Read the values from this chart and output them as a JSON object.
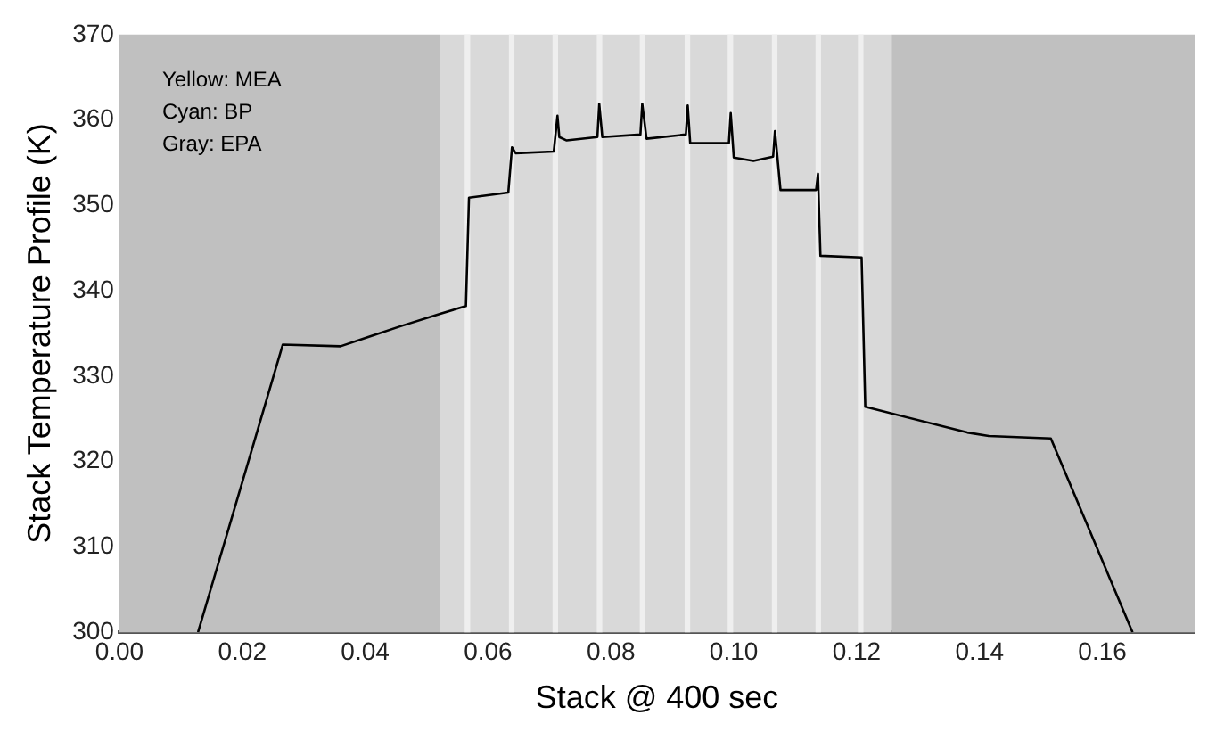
{
  "chart_data": {
    "type": "line",
    "xlabel": "Stack @ 400 sec",
    "ylabel": "Stack Temperature Profile (K)",
    "annotations": [
      "Yellow: MEA",
      "Cyan: BP",
      "Gray: EPA"
    ],
    "series": [
      {
        "color": "#000000",
        "x": [
          0.0128,
          0.0266,
          0.036,
          0.0406,
          0.046,
          0.0522,
          0.0564,
          0.0569,
          0.0633,
          0.0639,
          0.0645,
          0.0707,
          0.0713,
          0.0716,
          0.0728,
          0.0778,
          0.0781,
          0.0786,
          0.0848,
          0.0851,
          0.0858,
          0.0922,
          0.0925,
          0.0929,
          0.0992,
          0.0995,
          0.1,
          0.1032,
          0.1064,
          0.1067,
          0.1076,
          0.1134,
          0.1137,
          0.1141,
          0.1208,
          0.1214,
          0.138,
          0.1415,
          0.1516,
          0.1649
        ],
        "values": [
          300,
          333.7,
          333.5,
          334.6,
          335.9,
          337.3,
          338.2,
          350.9,
          351.5,
          356.8,
          356.1,
          356.3,
          360.5,
          358,
          357.6,
          358,
          361.9,
          358,
          358.3,
          361.9,
          357.8,
          358.3,
          361.7,
          357.3,
          357.3,
          360.8,
          355.6,
          355.2,
          355.7,
          358.7,
          351.8,
          351.8,
          353.7,
          344.1,
          343.9,
          326.4,
          323.4,
          323,
          322.7,
          300
        ]
      }
    ],
    "bands": [
      {
        "axis": "x",
        "from": 0,
        "to": 0.0522,
        "color": "#c0c0c0"
      },
      {
        "axis": "x",
        "from": 0.0522,
        "to": 0.1257,
        "color": "#d9d9d9"
      },
      {
        "axis": "x",
        "from": 0.1257,
        "to": 0.175,
        "color": "#c0c0c0"
      },
      {
        "axis": "x",
        "from": 0.0562,
        "to": 0.0571,
        "color": "#efefef"
      },
      {
        "axis": "x",
        "from": 0.0634,
        "to": 0.0643,
        "color": "#efefef"
      },
      {
        "axis": "x",
        "from": 0.0705,
        "to": 0.0714,
        "color": "#efefef"
      },
      {
        "axis": "x",
        "from": 0.0777,
        "to": 0.0786,
        "color": "#efefef"
      },
      {
        "axis": "x",
        "from": 0.0847,
        "to": 0.0856,
        "color": "#efefef"
      },
      {
        "axis": "x",
        "from": 0.092,
        "to": 0.0929,
        "color": "#efefef"
      },
      {
        "axis": "x",
        "from": 0.099,
        "to": 0.0999,
        "color": "#efefef"
      },
      {
        "axis": "x",
        "from": 0.1062,
        "to": 0.1071,
        "color": "#efefef"
      },
      {
        "axis": "x",
        "from": 0.1133,
        "to": 0.1142,
        "color": "#efefef"
      },
      {
        "axis": "x",
        "from": 0.1202,
        "to": 0.1211,
        "color": "#efefef"
      }
    ],
    "xlim": [
      0,
      0.175
    ],
    "xticks": [
      {
        "value": 0,
        "label": "0.00"
      },
      {
        "value": 0.02,
        "label": "0.02"
      },
      {
        "value": 0.04,
        "label": "0.04"
      },
      {
        "value": 0.06,
        "label": "0.06"
      },
      {
        "value": 0.08,
        "label": "0.08"
      },
      {
        "value": 0.1,
        "label": "0.10"
      },
      {
        "value": 0.12,
        "label": "0.12"
      },
      {
        "value": 0.14,
        "label": "0.14"
      },
      {
        "value": 0.16,
        "label": "0.16"
      }
    ],
    "ylim": [
      300,
      370
    ],
    "yticks": [
      300,
      310,
      320,
      330,
      340,
      350,
      360,
      370
    ],
    "grid": false,
    "legend": false,
    "marker": "none",
    "line_style": "solid"
  }
}
